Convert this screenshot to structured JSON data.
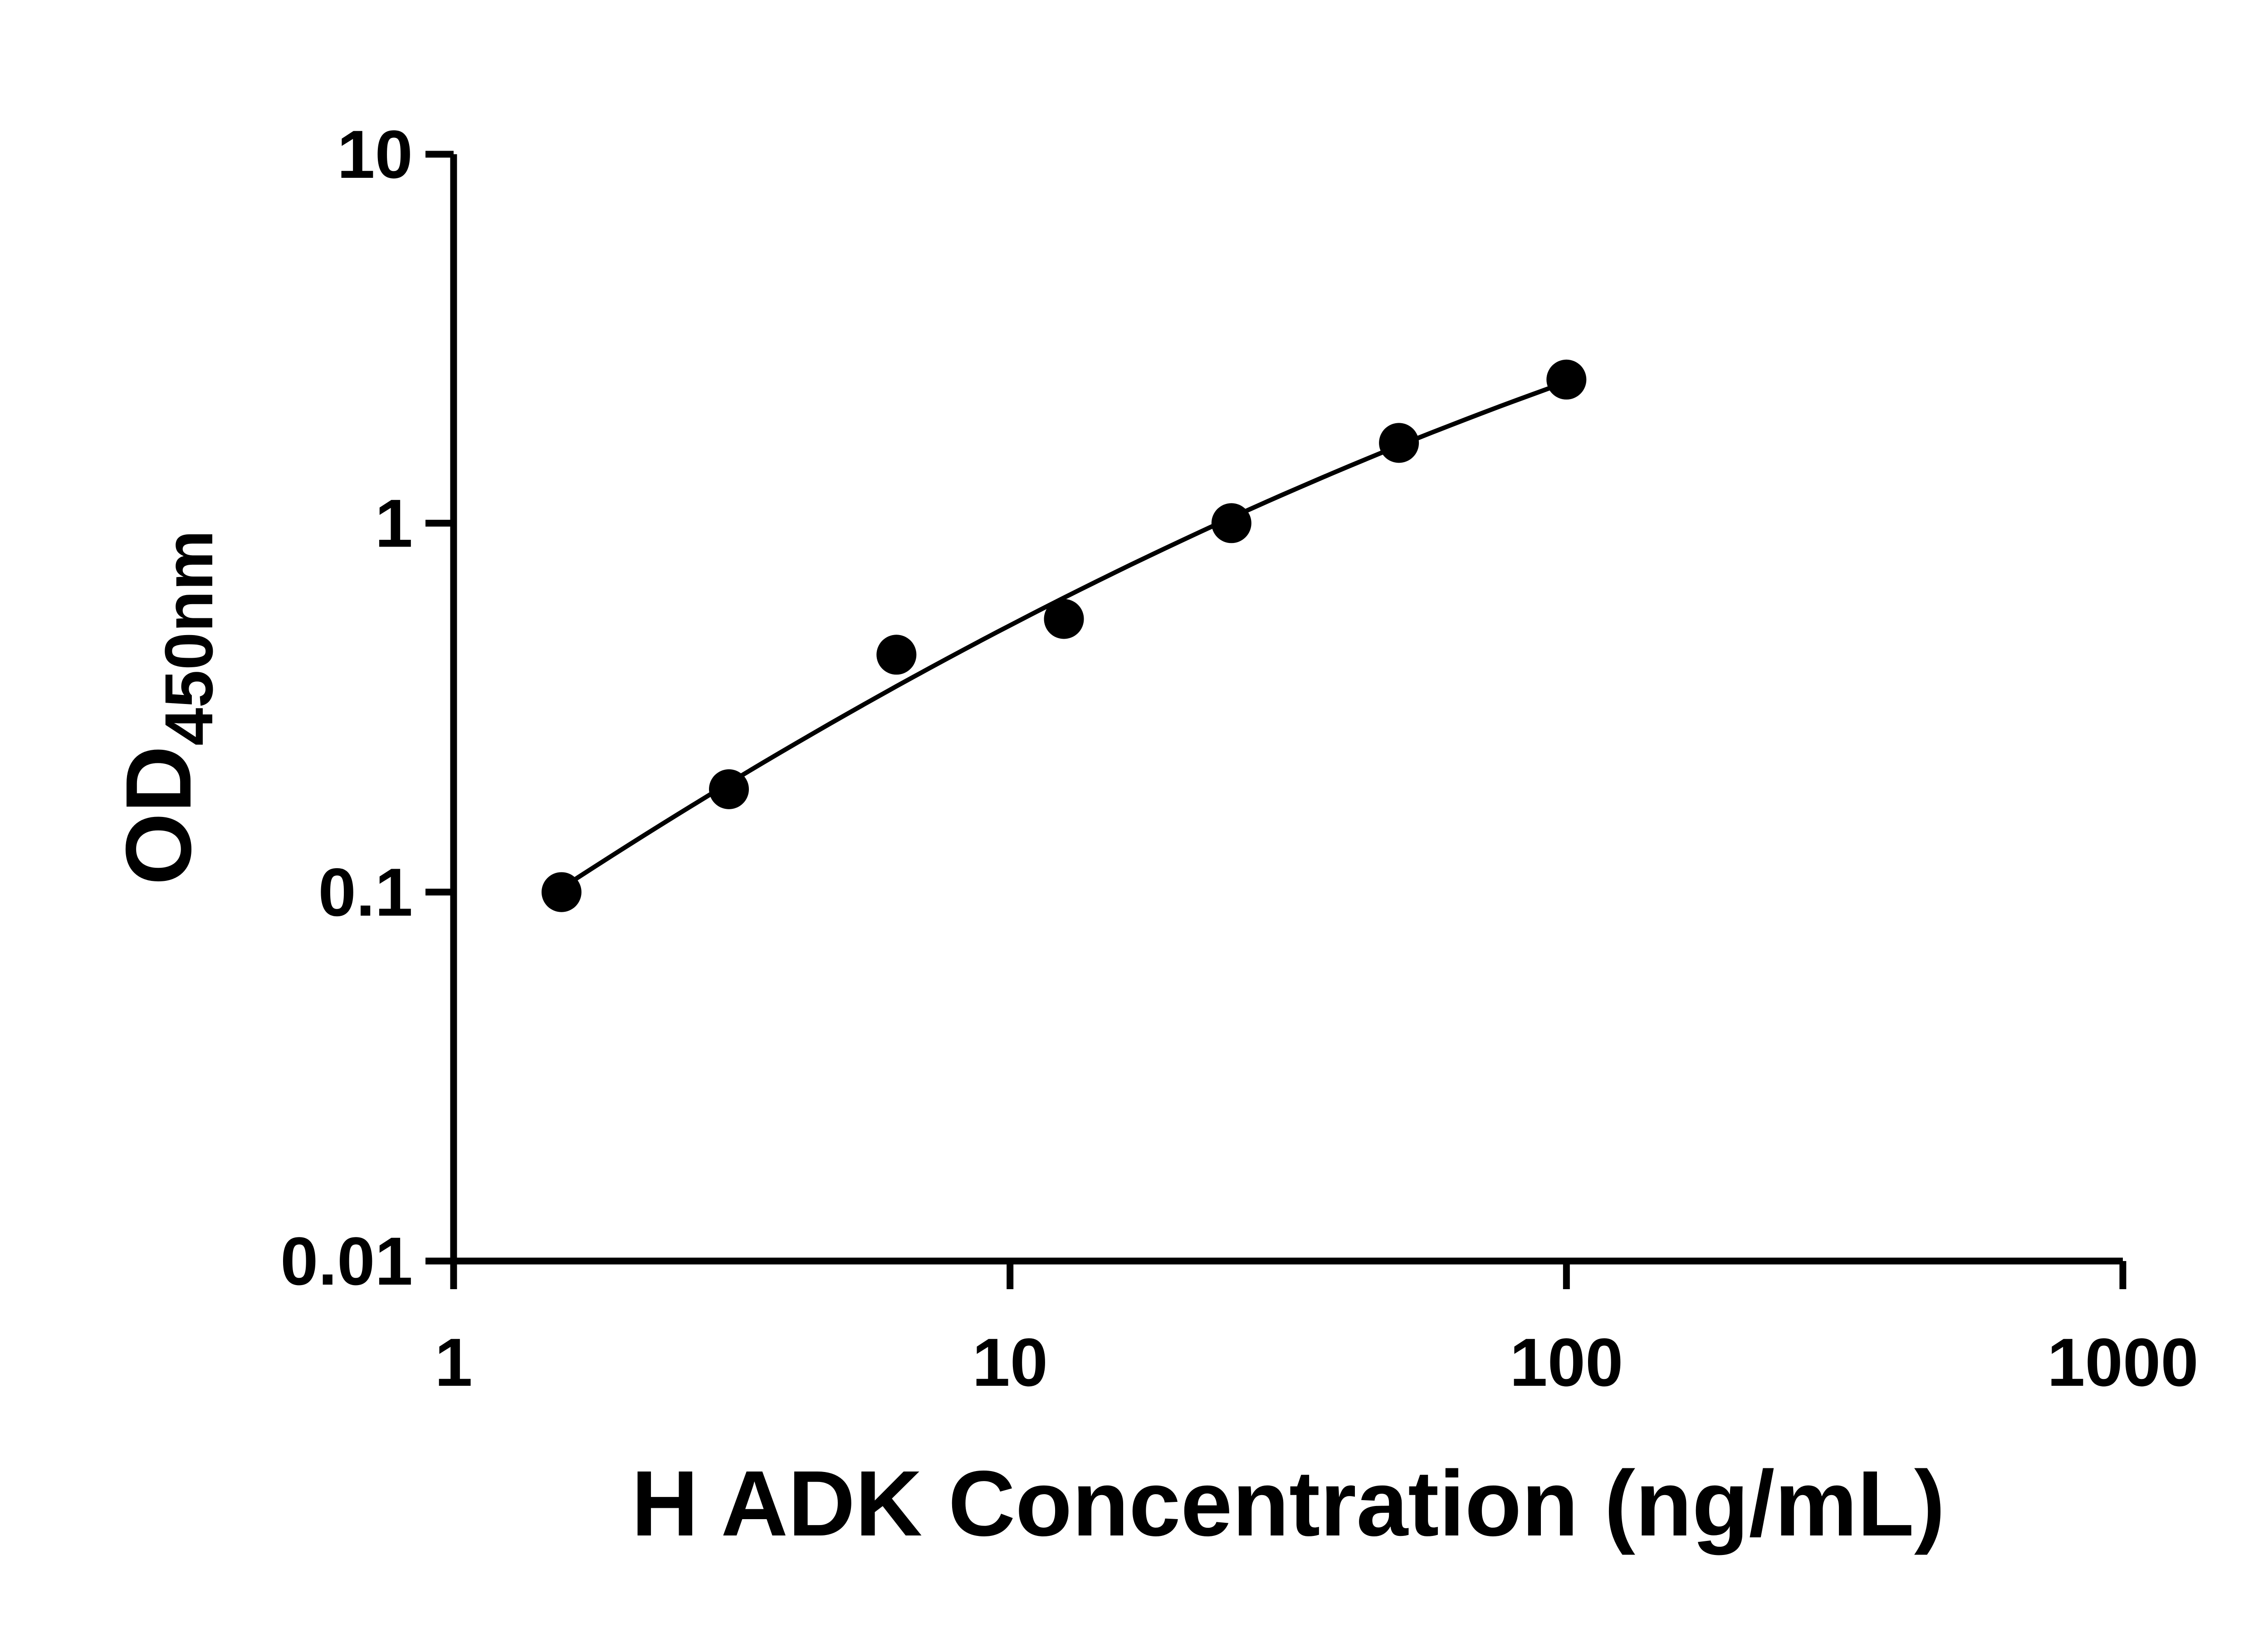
{
  "chart_data": {
    "type": "scatter",
    "title": "",
    "xlabel": "H ADK Concentration (ng/mL)",
    "ylabel": {
      "main": "OD",
      "sub": "450nm",
      "full": "OD450nm"
    },
    "x_scale": "log",
    "y_scale": "log",
    "xlim": [
      1,
      1000
    ],
    "ylim": [
      0.01,
      10
    ],
    "x_ticks": [
      {
        "value": 1,
        "label": "1"
      },
      {
        "value": 10,
        "label": "10"
      },
      {
        "value": 100,
        "label": "100"
      },
      {
        "value": 1000,
        "label": "1000"
      }
    ],
    "y_ticks": [
      {
        "value": 10,
        "label": "10"
      },
      {
        "value": 1,
        "label": "1"
      },
      {
        "value": 0.1,
        "label": "0.1"
      },
      {
        "value": 0.01,
        "label": "0.01"
      }
    ],
    "grid": false,
    "legend": null,
    "series": [
      {
        "marker": "circle",
        "color": "#000000",
        "trendline": true,
        "points": [
          {
            "x": 1.563,
            "y": 0.1
          },
          {
            "x": 3.125,
            "y": 0.19
          },
          {
            "x": 6.25,
            "y": 0.44
          },
          {
            "x": 12.5,
            "y": 0.55
          },
          {
            "x": 25,
            "y": 1.0
          },
          {
            "x": 50,
            "y": 1.65
          },
          {
            "x": 100,
            "y": 2.45
          }
        ]
      }
    ],
    "line_color": "#000000",
    "axis_color": "#000000",
    "background": "#ffffff"
  }
}
